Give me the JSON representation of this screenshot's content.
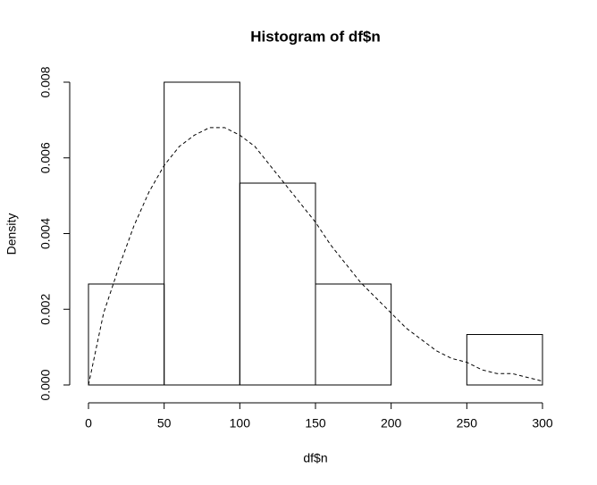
{
  "chart_data": {
    "type": "histogram",
    "title": "Histogram of df$n",
    "x_label": "df$n",
    "y_label": "Density",
    "bins": [
      0,
      50,
      100,
      150,
      200,
      250,
      300
    ],
    "values": [
      0.002667,
      0.008,
      0.005333,
      0.002667,
      0,
      0.001333
    ],
    "xlim": [
      0,
      300
    ],
    "ylim": [
      0,
      0.008
    ],
    "xticks": [
      0,
      50,
      100,
      150,
      200,
      250,
      300
    ],
    "yticks": [
      {
        "value": 0,
        "label": "0.000"
      },
      0.002,
      0.004,
      0.006,
      0.008
    ],
    "density_curve": {
      "style": "dashed",
      "x": [
        0,
        10,
        20,
        30,
        40,
        50,
        60,
        70,
        80,
        90,
        100,
        110,
        120,
        130,
        140,
        150,
        160,
        170,
        180,
        190,
        200,
        210,
        220,
        230,
        240,
        250,
        260,
        270,
        280,
        290,
        300
      ],
      "values": [
        0.0,
        0.0019,
        0.0031,
        0.0042,
        0.0051,
        0.0058,
        0.0063,
        0.0066,
        0.0068,
        0.0068,
        0.0066,
        0.0063,
        0.0058,
        0.0053,
        0.0048,
        0.0043,
        0.0037,
        0.0032,
        0.0027,
        0.0023,
        0.0019,
        0.0015,
        0.0012,
        0.0009,
        0.0007,
        0.0006,
        0.0004,
        0.0003,
        0.0003,
        0.0002,
        0.0001
      ]
    }
  }
}
